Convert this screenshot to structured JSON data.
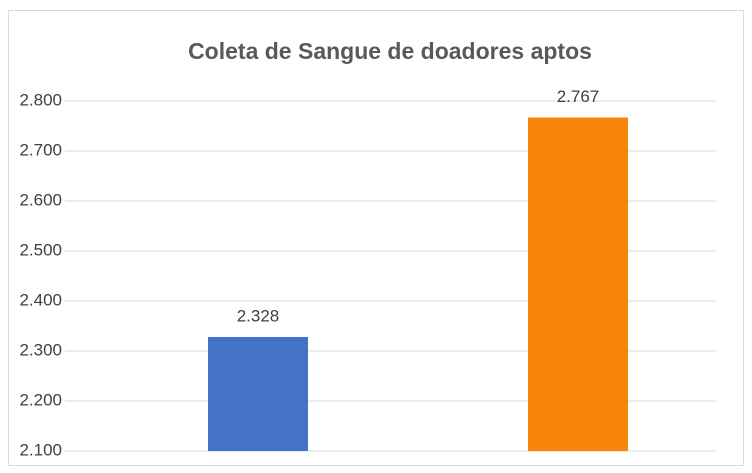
{
  "chart_data": {
    "type": "bar",
    "title": "Coleta de Sangue de doadores aptos",
    "categories": [
      null,
      null
    ],
    "values": [
      2328,
      2767
    ],
    "value_labels": [
      "2.328",
      "2.767"
    ],
    "colors": [
      "#4472c4",
      "#f7850a"
    ],
    "ylim": [
      2100,
      2800
    ],
    "yticks": [
      {
        "value": 2100,
        "label": "2.100"
      },
      {
        "value": 2200,
        "label": "2.200"
      },
      {
        "value": 2300,
        "label": "2.300"
      },
      {
        "value": 2400,
        "label": "2.400"
      },
      {
        "value": 2500,
        "label": "2.500"
      },
      {
        "value": 2600,
        "label": "2.600"
      },
      {
        "value": 2700,
        "label": "2.700"
      },
      {
        "value": 2800,
        "label": "2.800"
      }
    ],
    "grid": true
  }
}
